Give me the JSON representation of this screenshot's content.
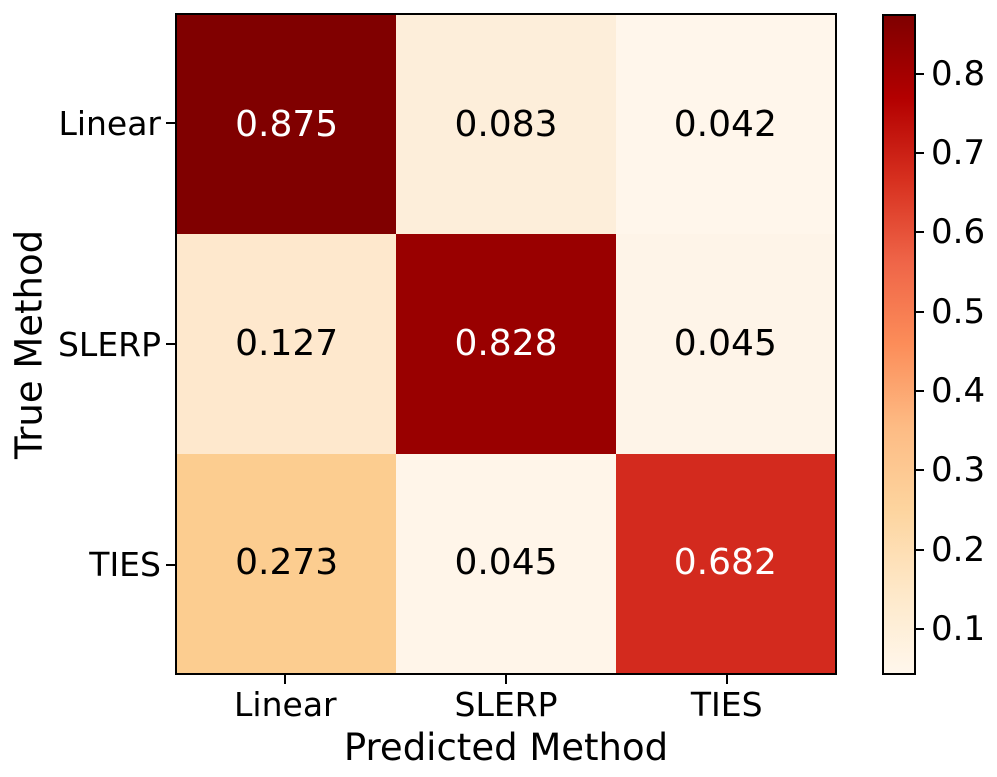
{
  "figure": {
    "background": "#ffffff",
    "axis_color": "#000000"
  },
  "chart_data": {
    "type": "heatmap",
    "title": "",
    "xlabel": "Predicted Method",
    "ylabel": "True Method",
    "x_categories": [
      "Linear",
      "SLERP",
      "TIES"
    ],
    "y_categories": [
      "Linear",
      "SLERP",
      "TIES"
    ],
    "values": [
      [
        0.875,
        0.083,
        0.042
      ],
      [
        0.127,
        0.828,
        0.045
      ],
      [
        0.273,
        0.045,
        0.682
      ]
    ],
    "value_labels": [
      [
        "0.875",
        "0.083",
        "0.042"
      ],
      [
        "0.127",
        "0.828",
        "0.045"
      ],
      [
        "0.273",
        "0.045",
        "0.682"
      ]
    ],
    "vmin": 0.042,
    "vmax": 0.875,
    "colormap": "OrRd",
    "grid": false,
    "legend_position": "none",
    "cell_colors": [
      [
        "#800000",
        "#fdeeda",
        "#fff6eb"
      ],
      [
        "#fee8cd",
        "#990000",
        "#fef4e8"
      ],
      [
        "#fccd90",
        "#fff5e9",
        "#d32a1e"
      ]
    ],
    "cell_text_colors": [
      [
        "#ffffff",
        "#000000",
        "#000000"
      ],
      [
        "#000000",
        "#ffffff",
        "#000000"
      ],
      [
        "#000000",
        "#000000",
        "#ffffff"
      ]
    ],
    "colorbar": {
      "ticks": [
        0.8,
        0.7,
        0.6,
        0.5,
        0.4,
        0.3,
        0.2,
        0.1
      ],
      "tick_labels": [
        "0.8",
        "0.7",
        "0.6",
        "0.5",
        "0.4",
        "0.3",
        "0.2",
        "0.1"
      ],
      "gradient_stops_bottom_to_top": [
        "#fff7ec",
        "#fee8c8",
        "#fdd49e",
        "#fdbb84",
        "#fc8d59",
        "#ef6548",
        "#d7301f",
        "#b30000",
        "#7f0000"
      ]
    }
  }
}
